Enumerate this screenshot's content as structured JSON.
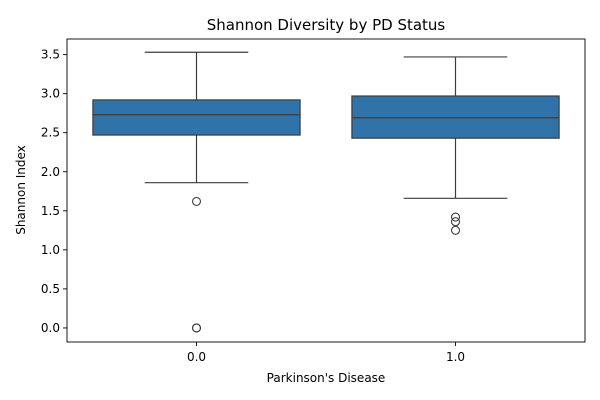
{
  "chart_data": {
    "type": "box",
    "title": "Shannon Diversity by PD Status",
    "xlabel": "Parkinson's Disease",
    "ylabel": "Shannon Index",
    "ylim": [
      -0.18,
      3.7
    ],
    "yticks": [
      0.0,
      0.5,
      1.0,
      1.5,
      2.0,
      2.5,
      3.0,
      3.5
    ],
    "ytick_labels": [
      "0.0",
      "0.5",
      "1.0",
      "1.5",
      "2.0",
      "2.5",
      "3.0",
      "3.5"
    ],
    "categories": [
      "0.0",
      "1.0"
    ],
    "box_color": "#2f73a8",
    "grid": false,
    "boxes": [
      {
        "category": "0.0",
        "whisker_low": 1.86,
        "q1": 2.47,
        "median": 2.73,
        "q3": 2.92,
        "whisker_high": 3.53,
        "outliers": [
          1.62,
          0.0,
          0.0
        ]
      },
      {
        "category": "1.0",
        "whisker_low": 1.66,
        "q1": 2.43,
        "median": 2.69,
        "q3": 2.97,
        "whisker_high": 3.47,
        "outliers": [
          1.42,
          1.36,
          1.25
        ]
      }
    ]
  }
}
